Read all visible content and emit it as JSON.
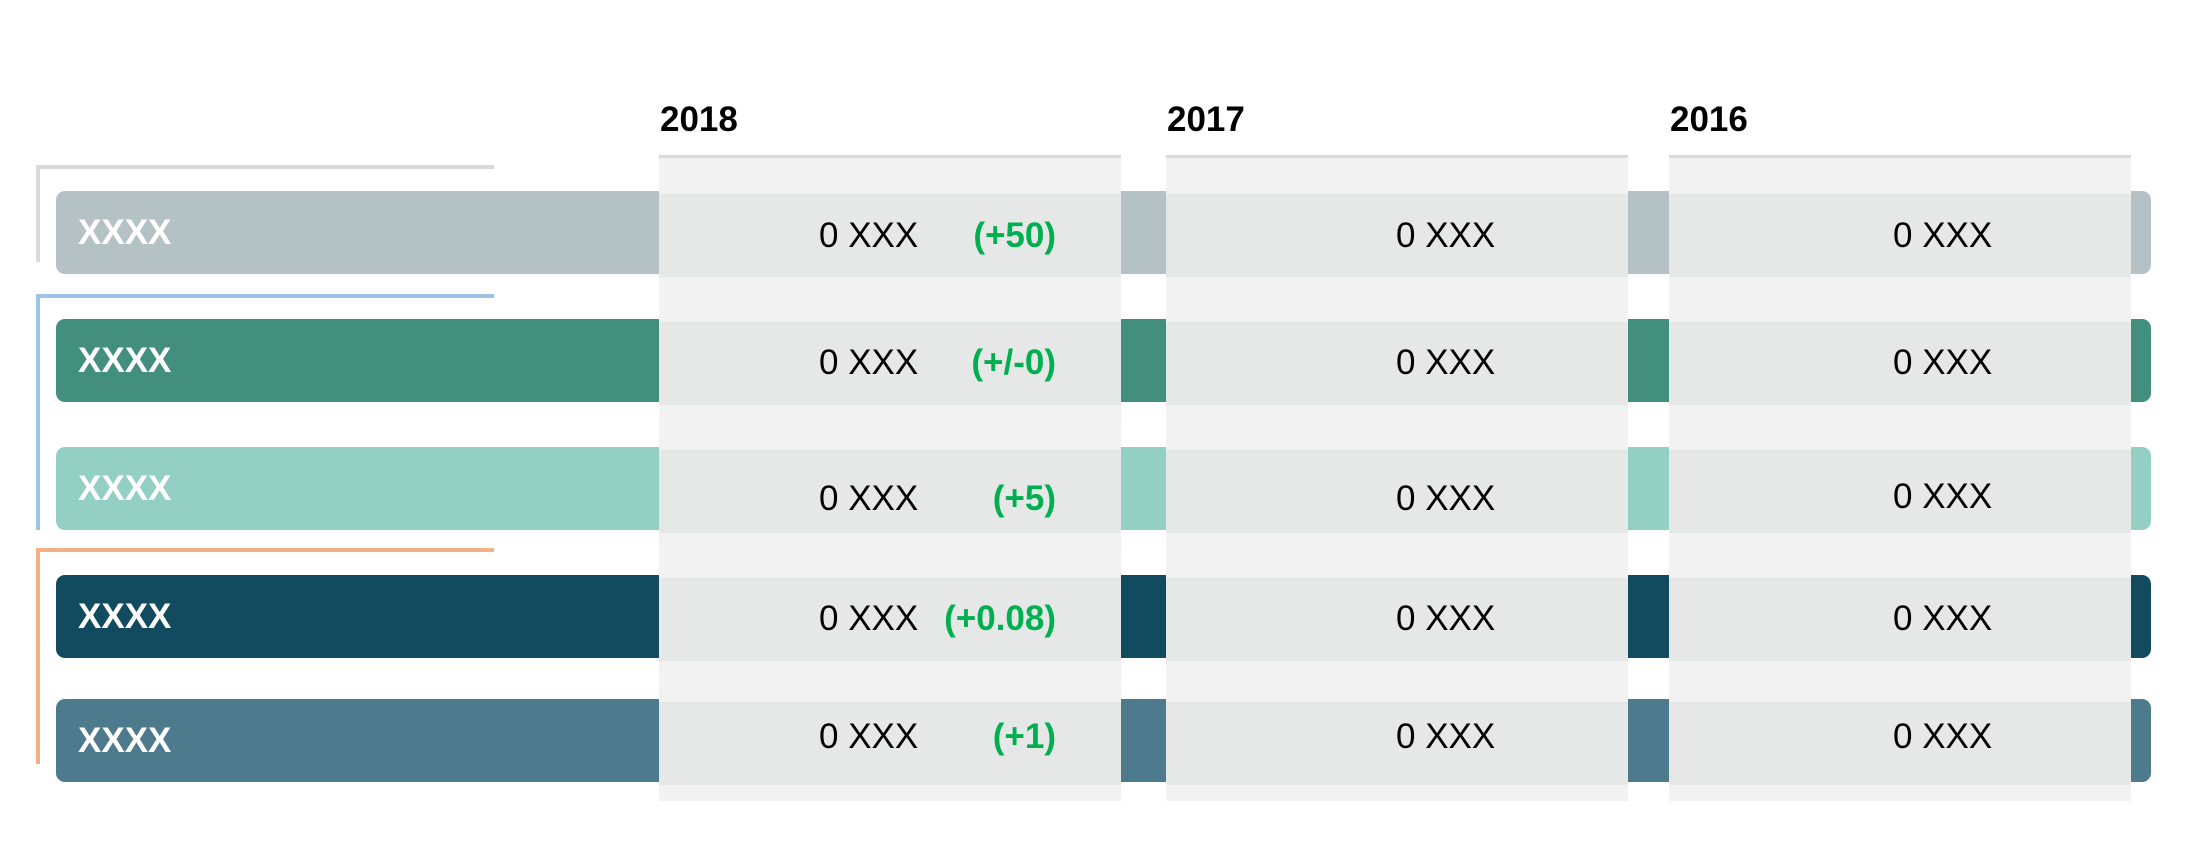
{
  "colors": {
    "row_gray": "#b4c2c6",
    "row_teal": "#428f7e",
    "row_mint": "#93cfc2",
    "row_navy": "#124a60",
    "row_steel": "#4e7a8d",
    "bracket_gray": "#d9d9d9",
    "bracket_blue": "#9dc3e6",
    "bracket_orange": "#f4b183",
    "change_green": "#00b050",
    "panel_bg": "#f2f2f2"
  },
  "columns": [
    {
      "year": "2018"
    },
    {
      "year": "2017"
    },
    {
      "year": "2016"
    }
  ],
  "rows": [
    {
      "label": "XXXX",
      "v2018": "0 XXX",
      "change": "(+50)",
      "v2017": "0 XXX",
      "v2016": "0 XXX"
    },
    {
      "label": "XXXX",
      "v2018": "0 XXX",
      "change": "(+/-0)",
      "v2017": "0 XXX",
      "v2016": "0 XXX"
    },
    {
      "label": "XXXX",
      "v2018": "0 XXX",
      "change": "(+5)",
      "v2017": "0 XXX",
      "v2016": "0 XXX"
    },
    {
      "label": "XXXX",
      "v2018": "0 XXX",
      "change": "(+0.08)",
      "v2017": "0 XXX",
      "v2016": "0 XXX"
    },
    {
      "label": "XXXX",
      "v2018": "0 XXX",
      "change": "(+1)",
      "v2017": "0 XXX",
      "v2016": "0 XXX"
    }
  ]
}
